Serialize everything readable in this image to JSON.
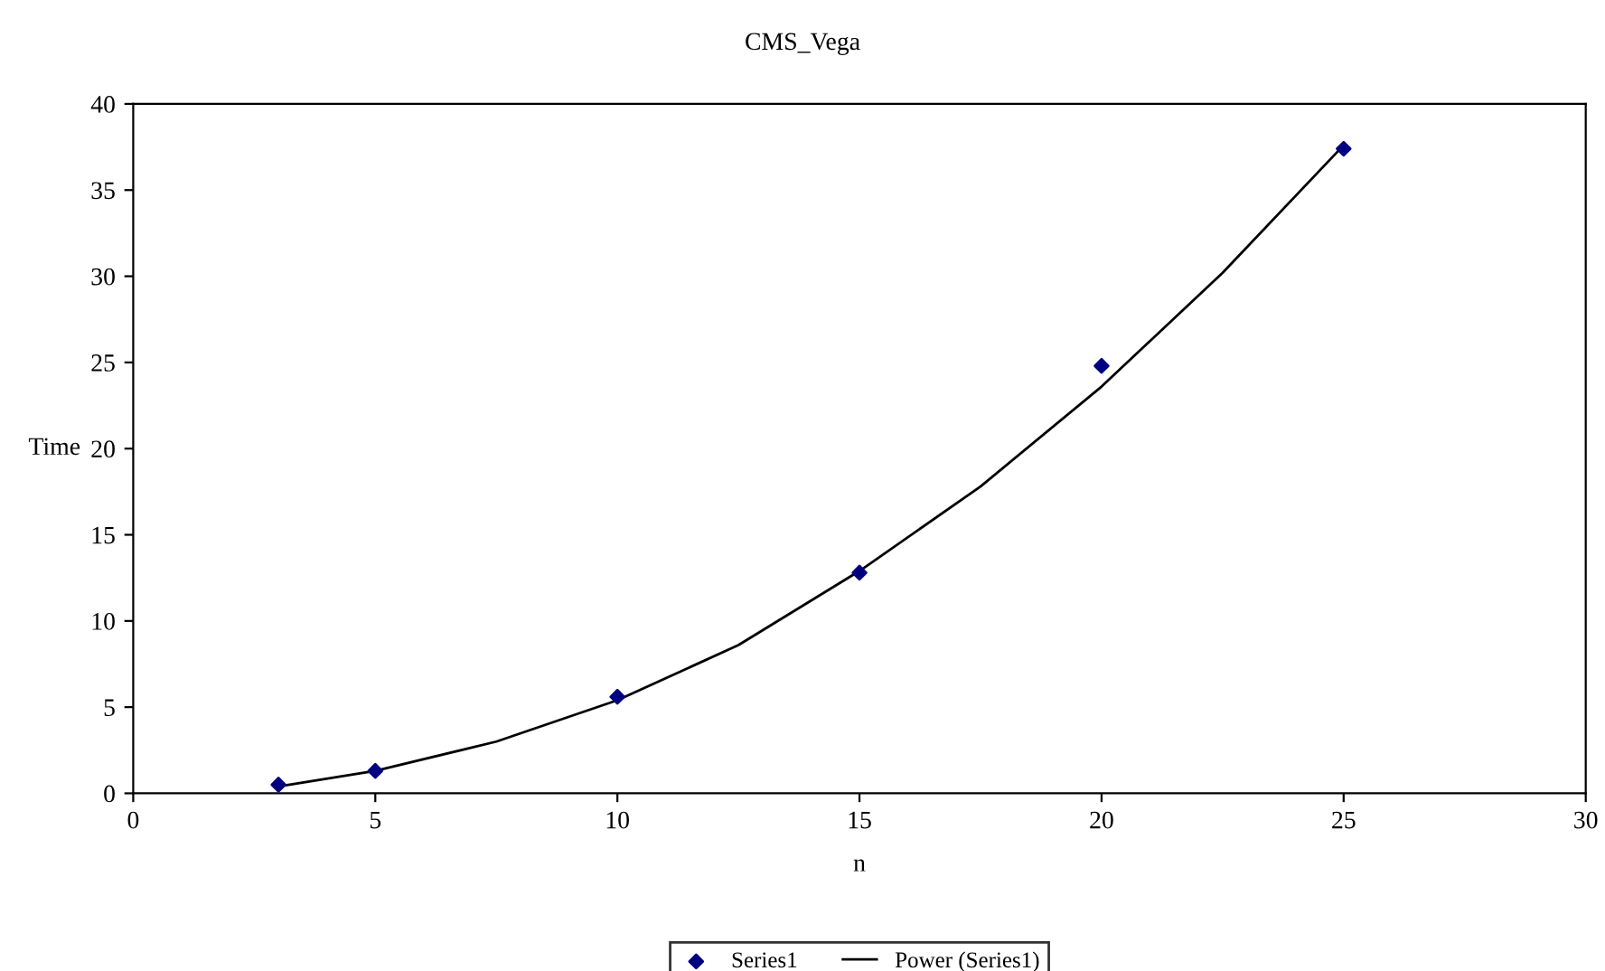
{
  "chart_data": {
    "type": "scatter",
    "title": "CMS_Vega",
    "xlabel": "n",
    "ylabel": "Time",
    "xlim": [
      0,
      30
    ],
    "xticks": [
      0,
      5,
      10,
      15,
      20,
      25,
      30
    ],
    "ylim": [
      0,
      40
    ],
    "yticks": [
      0,
      5,
      10,
      15,
      20,
      25,
      30,
      35,
      40
    ],
    "grid": false,
    "legend": "bottom",
    "series": [
      {
        "name": "Series1",
        "marker": "diamond",
        "color": "#000080",
        "x": [
          3,
          5,
          10,
          15,
          20,
          25
        ],
        "values": [
          0.5,
          1.3,
          5.6,
          12.8,
          24.8,
          37.4
        ]
      },
      {
        "name": "Power (Series1)",
        "type": "line",
        "marker": "none",
        "line_style": "solid",
        "color": "#000000",
        "x": [
          3,
          5,
          7.5,
          10,
          12.5,
          15,
          17.5,
          20,
          22.5,
          25
        ],
        "values": [
          0.4,
          1.3,
          3.0,
          5.4,
          8.6,
          12.9,
          17.8,
          23.6,
          30.2,
          37.6
        ]
      }
    ]
  }
}
